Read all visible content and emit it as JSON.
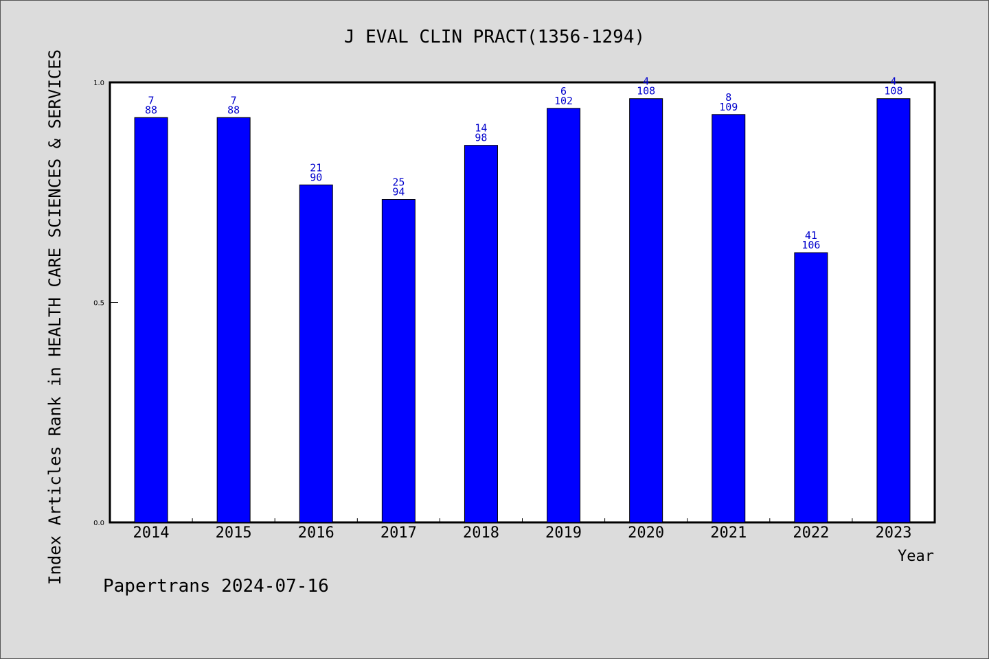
{
  "chart_data": {
    "type": "bar",
    "title": "J EVAL CLIN PRACT(1356-1294)",
    "xlabel": "Year",
    "ylabel": "Index Articles Rank in HEALTH CARE SCIENCES & SERVICES",
    "ylim": [
      0,
      1
    ],
    "yticks": [
      "0.0",
      "0.5",
      "1.0"
    ],
    "grid": false,
    "categories": [
      "2014",
      "2015",
      "2016",
      "2017",
      "2018",
      "2019",
      "2020",
      "2021",
      "2022",
      "2023"
    ],
    "values": [
      0.92,
      0.92,
      0.767,
      0.734,
      0.857,
      0.941,
      0.963,
      0.927,
      0.613,
      0.963
    ],
    "rank_labels": [
      "7",
      "7",
      "21",
      "25",
      "14",
      "6",
      "4",
      "8",
      "41",
      "4"
    ],
    "total_labels": [
      "88",
      "88",
      "90",
      "94",
      "98",
      "102",
      "108",
      "109",
      "106",
      "108"
    ],
    "bar_color": "#0000ff",
    "label_color": "#0000cc"
  },
  "footer": "Papertrans 2024-07-16"
}
